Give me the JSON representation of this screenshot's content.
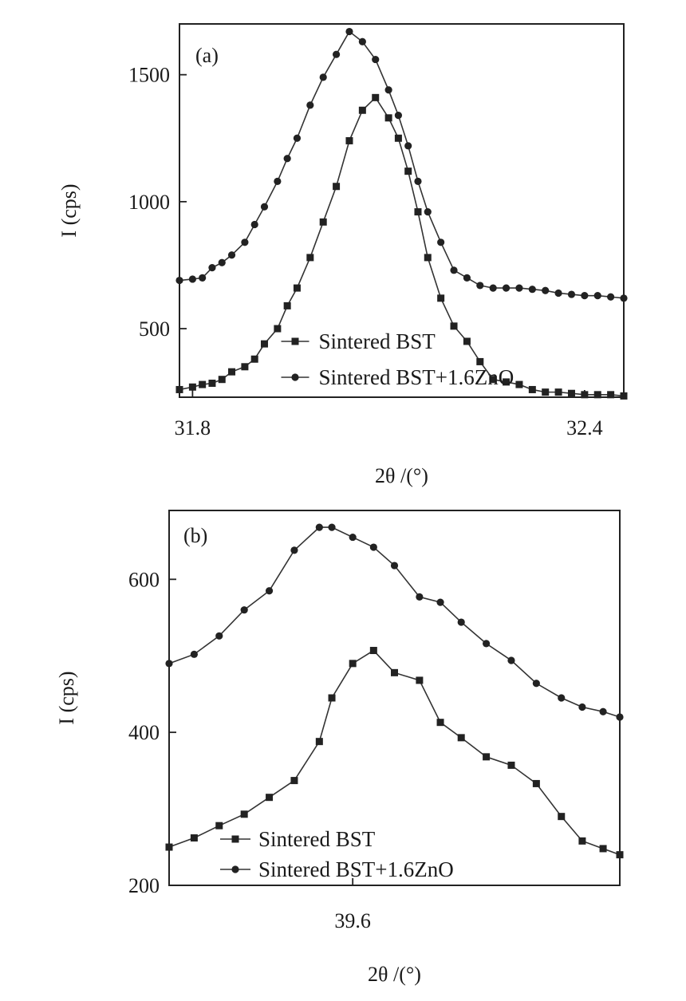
{
  "chart_data": [
    {
      "type": "line",
      "panel_label": "(a)",
      "xlabel": "2θ /(°)",
      "ylabel": "I (cps)",
      "xlim": [
        31.78,
        32.46
      ],
      "ylim": [
        230,
        1700
      ],
      "xticks": [
        31.8,
        32.4
      ],
      "yticks": [
        500,
        1000,
        1500
      ],
      "x": [
        31.78,
        31.8,
        31.815,
        31.83,
        31.845,
        31.86,
        31.88,
        31.895,
        31.91,
        31.93,
        31.945,
        31.96,
        31.98,
        32.0,
        32.02,
        32.04,
        32.06,
        32.08,
        32.1,
        32.115,
        32.13,
        32.145,
        32.16,
        32.18,
        32.2,
        32.22,
        32.24,
        32.26,
        32.28,
        32.3,
        32.32,
        32.34,
        32.36,
        32.38,
        32.4,
        32.42,
        32.44,
        32.46
      ],
      "series": [
        {
          "name": "Sintered BST",
          "marker": "square",
          "values": [
            260,
            270,
            280,
            285,
            300,
            330,
            350,
            380,
            440,
            500,
            590,
            660,
            780,
            920,
            1060,
            1240,
            1360,
            1410,
            1330,
            1250,
            1120,
            960,
            780,
            620,
            510,
            450,
            370,
            300,
            290,
            280,
            260,
            250,
            250,
            245,
            240,
            240,
            240,
            235
          ]
        },
        {
          "name": "Sintered BST+1.6ZnO",
          "marker": "circle",
          "values": [
            690,
            695,
            700,
            740,
            760,
            790,
            840,
            910,
            980,
            1080,
            1170,
            1250,
            1380,
            1490,
            1580,
            1670,
            1630,
            1560,
            1440,
            1340,
            1220,
            1080,
            960,
            840,
            730,
            700,
            670,
            660,
            660,
            660,
            655,
            650,
            640,
            635,
            630,
            630,
            625,
            620
          ]
        }
      ],
      "legend": {
        "position": "bottom-right",
        "entries": [
          "Sintered BST",
          "Sintered BST+1.6ZnO"
        ]
      }
    },
    {
      "type": "line",
      "panel_label": "(b)",
      "xlabel": "2θ /(°)",
      "ylabel": "I (cps)",
      "xlim": [
        39.38,
        39.92
      ],
      "ylim": [
        200,
        690
      ],
      "xticks": [
        39.6
      ],
      "yticks": [
        200,
        400,
        600
      ],
      "x": [
        39.38,
        39.41,
        39.44,
        39.47,
        39.5,
        39.53,
        39.56,
        39.575,
        39.6,
        39.625,
        39.65,
        39.68,
        39.705,
        39.73,
        39.76,
        39.79,
        39.82,
        39.85,
        39.875,
        39.9,
        39.92
      ],
      "series": [
        {
          "name": "Sintered BST",
          "marker": "square",
          "values": [
            250,
            262,
            278,
            293,
            315,
            337,
            388,
            445,
            490,
            507,
            478,
            468,
            413,
            393,
            368,
            357,
            333,
            290,
            258,
            248,
            240
          ]
        },
        {
          "name": "Sintered BST+1.6ZnO",
          "marker": "circle",
          "values": [
            490,
            502,
            526,
            560,
            585,
            638,
            668,
            668,
            655,
            642,
            618,
            577,
            570,
            544,
            516,
            494,
            464,
            445,
            433,
            427,
            420
          ]
        }
      ],
      "legend": {
        "position": "bottom-left",
        "entries": [
          "Sintered BST",
          "Sintered BST+1.6ZnO"
        ]
      }
    }
  ]
}
